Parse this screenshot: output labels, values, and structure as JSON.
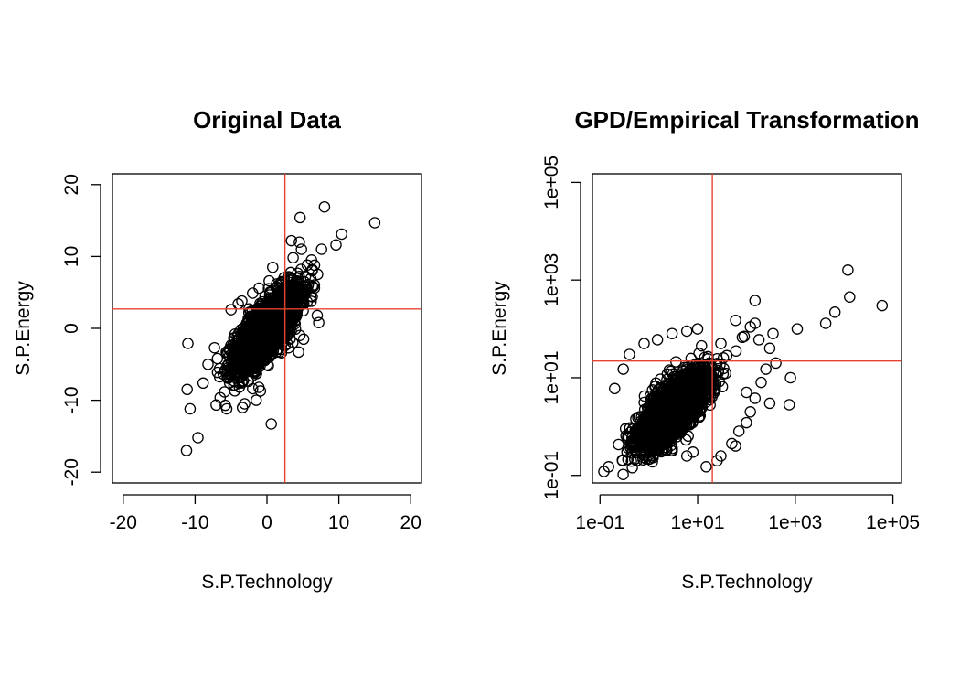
{
  "chart_data": [
    {
      "type": "scatter",
      "title": "Original Data",
      "xlabel": "S.P.Technology",
      "ylabel": "S.P.Energy",
      "xscale": "linear",
      "yscale": "linear",
      "xlim": [
        -21.5,
        21.5
      ],
      "ylim": [
        -21.5,
        21.5
      ],
      "xticks": [
        -20,
        -10,
        0,
        10,
        20
      ],
      "xtick_labels": [
        "-20",
        "-10",
        "0",
        "10",
        "20"
      ],
      "yticks": [
        -20,
        -10,
        0,
        10,
        20
      ],
      "ytick_labels": [
        "-20",
        "-10",
        "0",
        "10",
        "20"
      ],
      "threshold_x": 2.5,
      "threshold_y": 2.7,
      "threshold_color": "#e8432f",
      "grid": false,
      "cluster": {
        "center": [
          0,
          0
        ],
        "sd": [
          2.2,
          2.8
        ],
        "corr": 0.75,
        "count": 2200
      },
      "points": [
        [
          15.0,
          14.7
        ],
        [
          8.0,
          16.9
        ],
        [
          4.6,
          15.4
        ],
        [
          10.4,
          13.1
        ],
        [
          9.6,
          11.6
        ],
        [
          3.4,
          12.2
        ],
        [
          4.5,
          12.0
        ],
        [
          7.6,
          11.0
        ],
        [
          4.8,
          11.0
        ],
        [
          6.2,
          9.5
        ],
        [
          5.6,
          8.8
        ],
        [
          0.8,
          8.5
        ],
        [
          6.3,
          8.0
        ],
        [
          7.0,
          1.8
        ],
        [
          7.2,
          0.8
        ],
        [
          -11.0,
          -2.1
        ],
        [
          -11.1,
          -8.5
        ],
        [
          -10.7,
          -11.2
        ],
        [
          -9.6,
          -15.2
        ],
        [
          -11.2,
          -17.0
        ],
        [
          -5.8,
          -10.7
        ],
        [
          -5.6,
          -11.2
        ],
        [
          -3.1,
          -10.5
        ],
        [
          -1.5,
          -10.0
        ],
        [
          0.6,
          -13.3
        ],
        [
          -8.2,
          -5.0
        ],
        [
          -7.3,
          -2.7
        ],
        [
          -6.9,
          -4.2
        ],
        [
          -6.6,
          -5.6
        ],
        [
          -5.2,
          -7.6
        ],
        [
          -4.6,
          -7.3
        ],
        [
          -2.0,
          -8.4
        ],
        [
          -0.9,
          -8.7
        ],
        [
          4.4,
          -3.3
        ],
        [
          5.1,
          -1.5
        ],
        [
          3.6,
          -2.0
        ],
        [
          -5.0,
          2.6
        ],
        [
          -4.0,
          3.4
        ],
        [
          -3.5,
          3.8
        ],
        [
          -2.0,
          4.9
        ],
        [
          -1.1,
          5.6
        ],
        [
          0.3,
          6.6
        ],
        [
          1.8,
          6.2
        ],
        [
          3.3,
          7.0
        ],
        [
          5.7,
          5.9
        ],
        [
          6.3,
          4.4
        ],
        [
          6.6,
          5.6
        ]
      ]
    },
    {
      "type": "scatter",
      "title": "GPD/Empirical Transformation",
      "xlabel": "S.P.Technology",
      "ylabel": "S.P.Energy",
      "xscale": "log10",
      "yscale": "log10",
      "xlim": [
        0.07,
        150000
      ],
      "ylim": [
        0.07,
        150000
      ],
      "xticks": [
        0.1,
        10,
        1000,
        100000
      ],
      "xtick_labels": [
        "1e-01",
        "1e+01",
        "1e+03",
        "1e+05"
      ],
      "yticks": [
        0.1,
        10,
        1000,
        100000
      ],
      "ytick_labels": [
        "1e-01",
        "1e+01",
        "1e+03",
        "1e+05"
      ],
      "threshold_x": 20,
      "threshold_y": 22,
      "threshold_color": "#e8432f",
      "grid": false,
      "cluster": {
        "center_log10": [
          0.5,
          0.35
        ],
        "sd_log10": [
          0.35,
          0.38
        ],
        "corr": 0.72,
        "count": 2600
      },
      "points": [
        [
          60000,
          300
        ],
        [
          12000,
          1600
        ],
        [
          13000,
          450
        ],
        [
          6500,
          220
        ],
        [
          4200,
          130
        ],
        [
          1100,
          100
        ],
        [
          150,
          380
        ],
        [
          60,
          150
        ],
        [
          150,
          130
        ],
        [
          120,
          110
        ],
        [
          350,
          80
        ],
        [
          30,
          50
        ],
        [
          800,
          10
        ],
        [
          750,
          2.8
        ],
        [
          300,
          3.0
        ],
        [
          150,
          3.8
        ],
        [
          100,
          5.0
        ],
        [
          4,
          0.7
        ],
        [
          2,
          0.35
        ],
        [
          6,
          0.25
        ],
        [
          8,
          0.3
        ],
        [
          15,
          0.15
        ],
        [
          30,
          0.25
        ],
        [
          50,
          0.45
        ],
        [
          70,
          0.8
        ],
        [
          100,
          1.2
        ],
        [
          120,
          2.0
        ],
        [
          60,
          0.4
        ],
        [
          25,
          0.2
        ],
        [
          200,
          8
        ],
        [
          250,
          15
        ],
        [
          300,
          40
        ],
        [
          90,
          70
        ],
        [
          180,
          60
        ],
        [
          400,
          20
        ],
        [
          0.2,
          6
        ],
        [
          0.3,
          15
        ],
        [
          0.4,
          30
        ],
        [
          0.8,
          50
        ],
        [
          1.5,
          60
        ],
        [
          3,
          80
        ],
        [
          6,
          90
        ],
        [
          10,
          100
        ],
        [
          12,
          45
        ],
        [
          1,
          2
        ],
        [
          0.15,
          0.15
        ],
        [
          0.12,
          0.12
        ]
      ]
    }
  ]
}
